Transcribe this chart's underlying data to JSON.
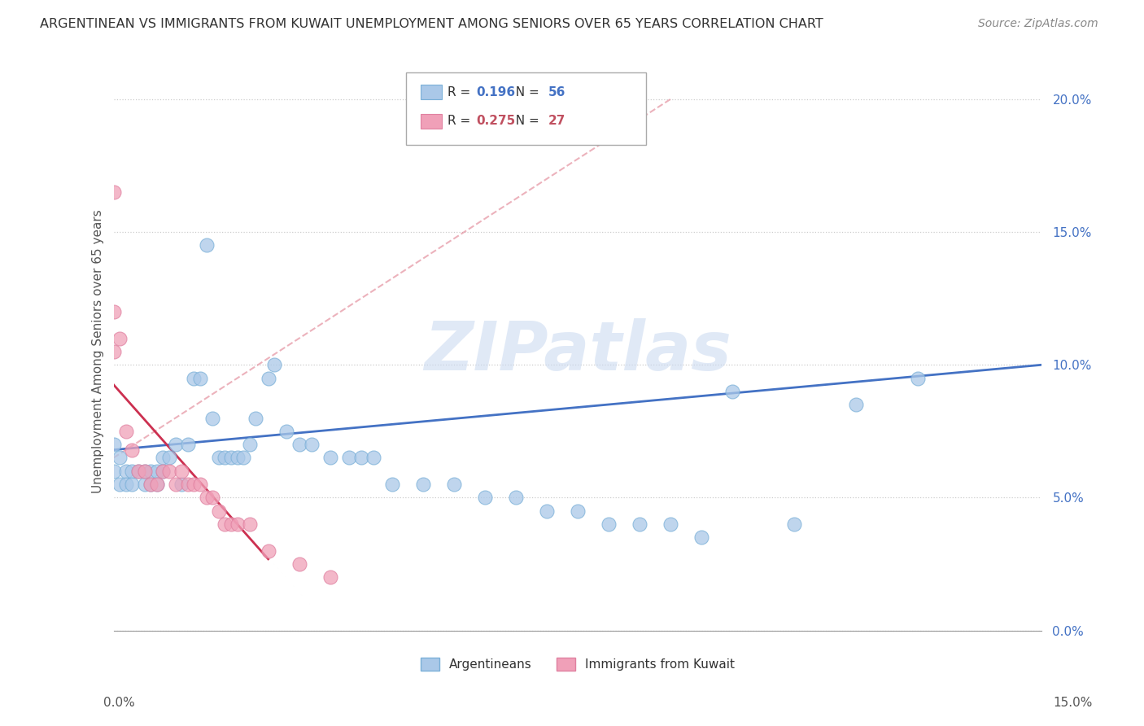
{
  "title": "ARGENTINEAN VS IMMIGRANTS FROM KUWAIT UNEMPLOYMENT AMONG SENIORS OVER 65 YEARS CORRELATION CHART",
  "source": "Source: ZipAtlas.com",
  "ylabel": "Unemployment Among Seniors over 65 years",
  "ytick_labels": [
    "0.0%",
    "5.0%",
    "10.0%",
    "15.0%",
    "20.0%"
  ],
  "ytick_values": [
    0.0,
    0.05,
    0.1,
    0.15,
    0.2
  ],
  "xlim": [
    0.0,
    0.15
  ],
  "ylim": [
    -0.005,
    0.215
  ],
  "watermark": "ZIPatlas",
  "argentinean_color": "#aac8e8",
  "kuwait_color": "#f0a0b8",
  "trendline_arg_color": "#4472c4",
  "trendline_kuw_color": "#c0506080",
  "legend_blue_text": "#4472c4",
  "legend_pink_text": "#c05060",
  "arg_R": "0.196",
  "arg_N": "56",
  "kuw_R": "0.275",
  "kuw_N": "27",
  "argentinean_x": [
    0.0,
    0.0,
    0.001,
    0.001,
    0.002,
    0.002,
    0.003,
    0.003,
    0.004,
    0.005,
    0.005,
    0.006,
    0.006,
    0.007,
    0.007,
    0.008,
    0.008,
    0.009,
    0.01,
    0.011,
    0.012,
    0.013,
    0.014,
    0.015,
    0.016,
    0.017,
    0.018,
    0.019,
    0.02,
    0.021,
    0.022,
    0.023,
    0.025,
    0.026,
    0.028,
    0.03,
    0.032,
    0.035,
    0.038,
    0.04,
    0.042,
    0.045,
    0.05,
    0.055,
    0.06,
    0.065,
    0.07,
    0.075,
    0.08,
    0.085,
    0.09,
    0.095,
    0.1,
    0.11,
    0.12,
    0.13
  ],
  "argentinean_y": [
    0.06,
    0.07,
    0.055,
    0.065,
    0.06,
    0.055,
    0.06,
    0.055,
    0.06,
    0.055,
    0.06,
    0.055,
    0.06,
    0.06,
    0.055,
    0.06,
    0.065,
    0.065,
    0.07,
    0.055,
    0.07,
    0.095,
    0.095,
    0.145,
    0.08,
    0.065,
    0.065,
    0.065,
    0.065,
    0.065,
    0.07,
    0.08,
    0.095,
    0.1,
    0.075,
    0.07,
    0.07,
    0.065,
    0.065,
    0.065,
    0.065,
    0.055,
    0.055,
    0.055,
    0.05,
    0.05,
    0.045,
    0.045,
    0.04,
    0.04,
    0.04,
    0.035,
    0.09,
    0.04,
    0.085,
    0.095
  ],
  "kuwait_x": [
    0.0,
    0.0,
    0.0,
    0.001,
    0.002,
    0.003,
    0.004,
    0.005,
    0.006,
    0.007,
    0.008,
    0.009,
    0.01,
    0.011,
    0.012,
    0.013,
    0.014,
    0.015,
    0.016,
    0.017,
    0.018,
    0.019,
    0.02,
    0.022,
    0.025,
    0.03,
    0.035
  ],
  "kuwait_y": [
    0.165,
    0.12,
    0.105,
    0.11,
    0.075,
    0.068,
    0.06,
    0.06,
    0.055,
    0.055,
    0.06,
    0.06,
    0.055,
    0.06,
    0.055,
    0.055,
    0.055,
    0.05,
    0.05,
    0.045,
    0.04,
    0.04,
    0.04,
    0.04,
    0.03,
    0.025,
    0.02
  ]
}
